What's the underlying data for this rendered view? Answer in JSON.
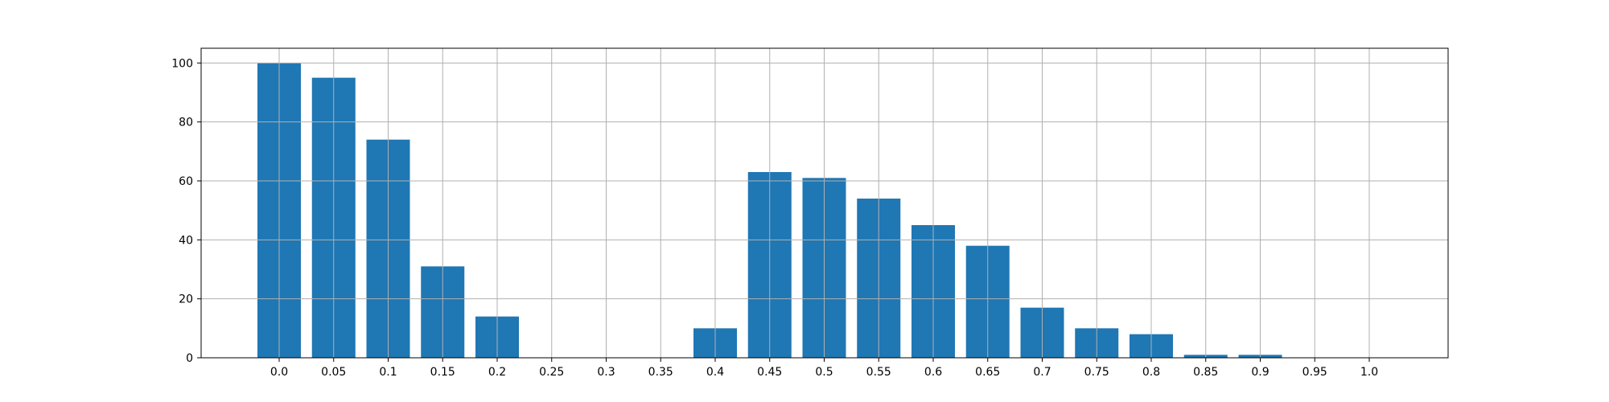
{
  "chart_data": {
    "type": "bar",
    "categories": [
      "0.0",
      "0.05",
      "0.1",
      "0.15",
      "0.2",
      "0.25",
      "0.3",
      "0.35",
      "0.4",
      "0.45",
      "0.5",
      "0.55",
      "0.6",
      "0.65",
      "0.7",
      "0.75",
      "0.8",
      "0.85",
      "0.9",
      "0.95",
      "1.0"
    ],
    "values": [
      100,
      95,
      74,
      31,
      14,
      0,
      0,
      0,
      10,
      63,
      61,
      54,
      45,
      38,
      17,
      10,
      8,
      1,
      1,
      0,
      0
    ],
    "title": "",
    "xlabel": "",
    "ylabel": "",
    "ylim": [
      0,
      105
    ],
    "yticks": [
      0,
      20,
      40,
      60,
      80,
      100
    ],
    "grid": true,
    "bar_color": "#1f77b4",
    "grid_color": "#b0b0b0"
  }
}
